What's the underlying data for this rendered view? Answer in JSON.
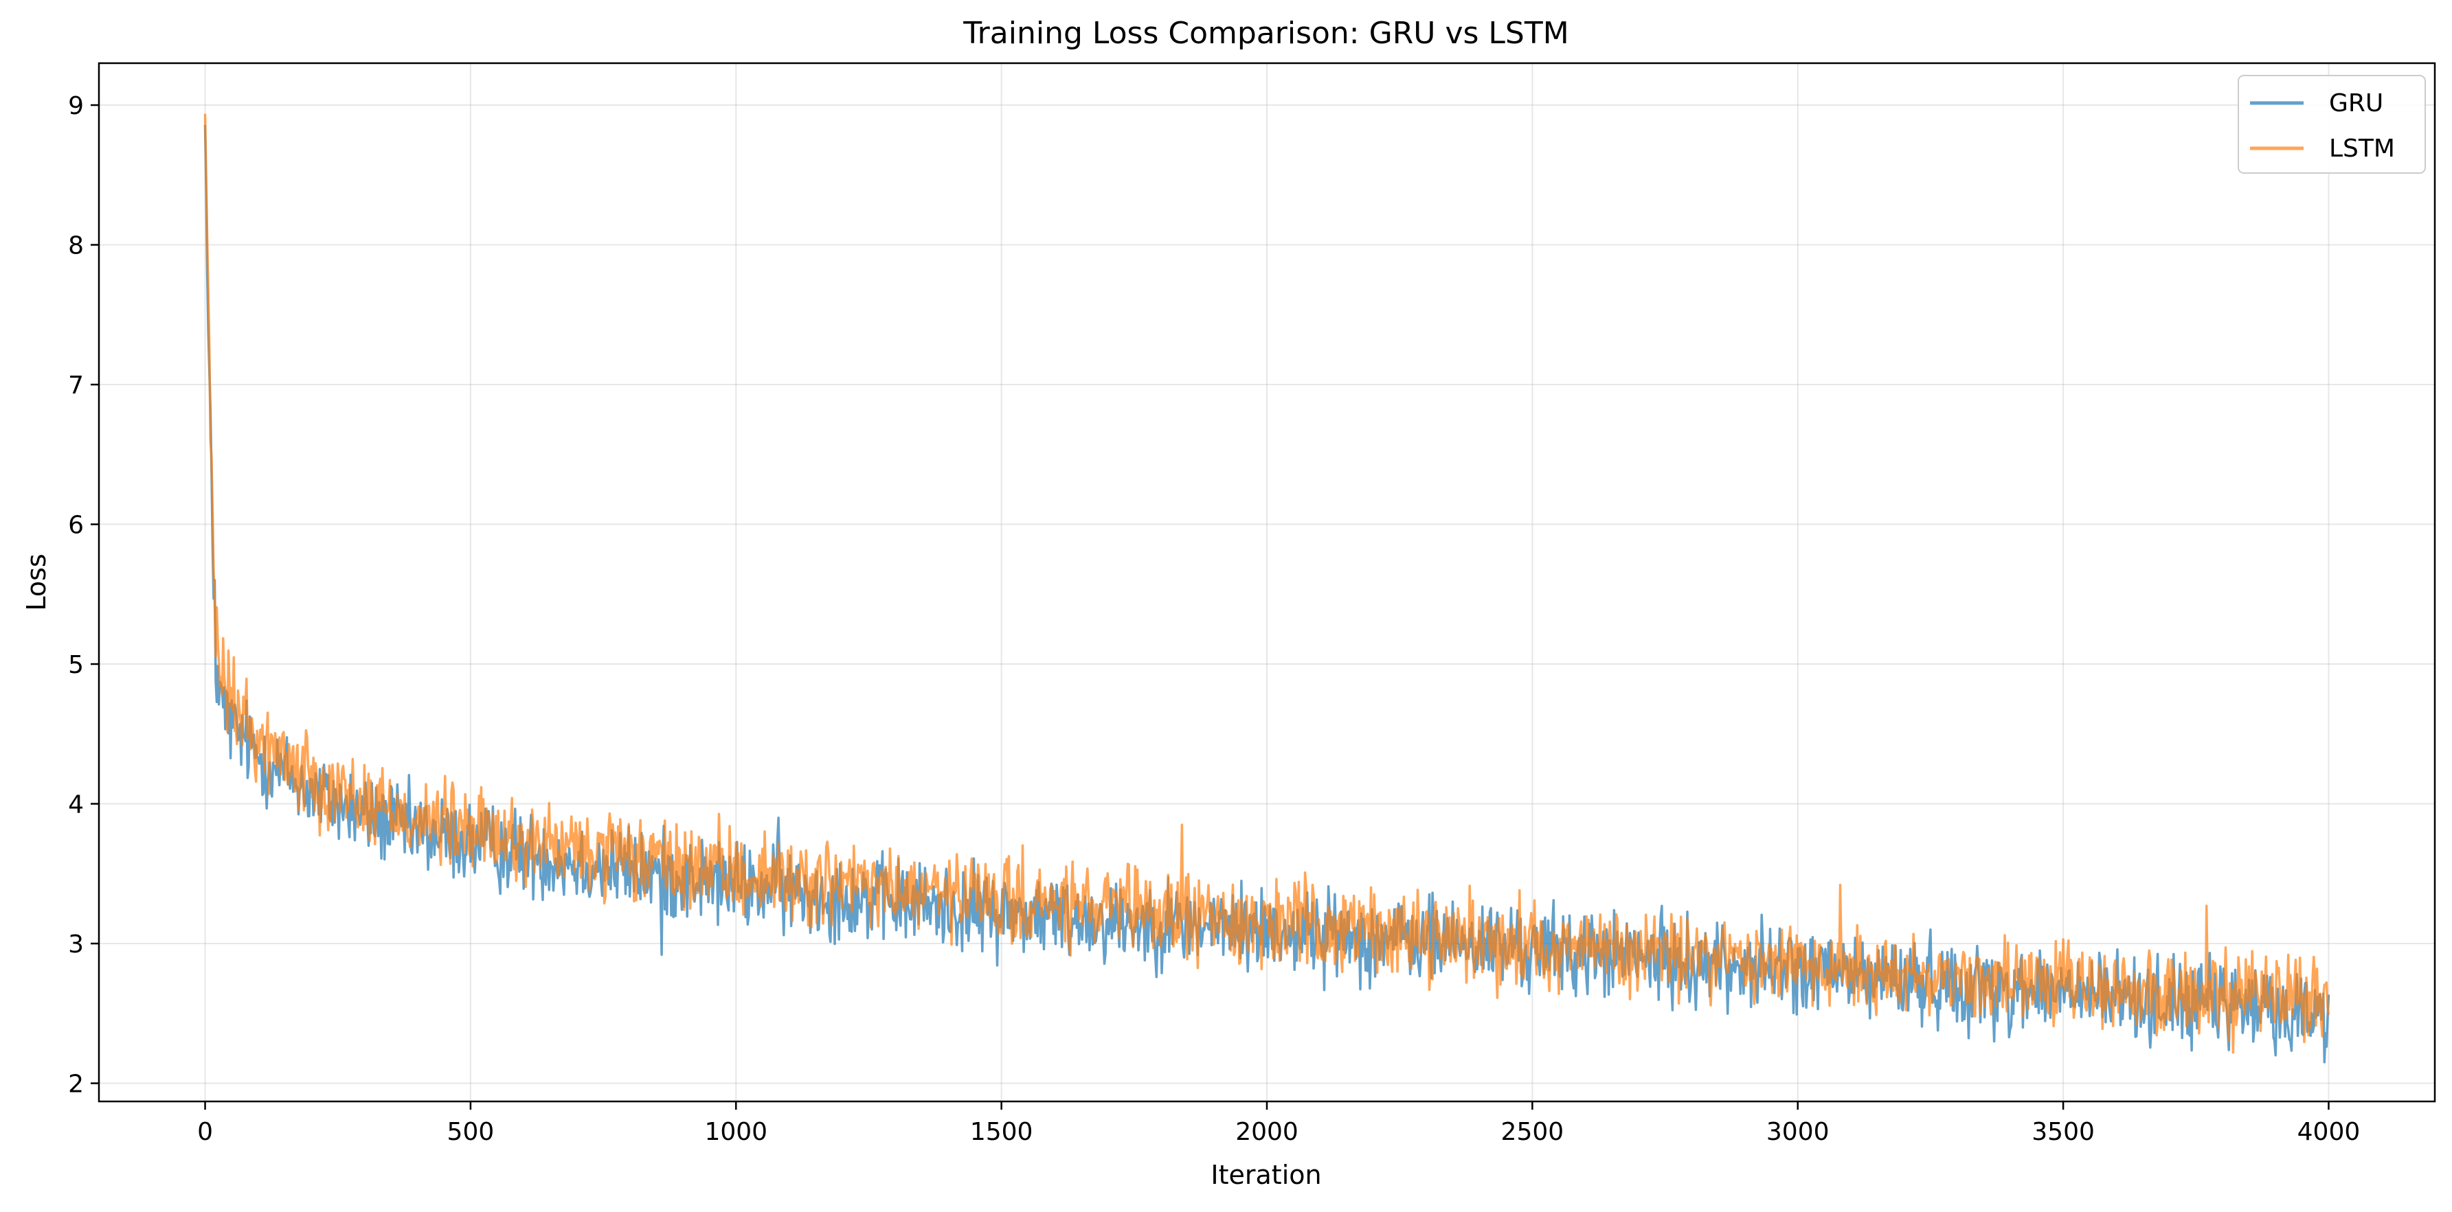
{
  "chart_data": {
    "type": "line",
    "title": "Training Loss Comparison: GRU vs LSTM",
    "xlabel": "Iteration",
    "ylabel": "Loss",
    "xlim": [
      -200,
      4200
    ],
    "ylim": [
      1.87,
      9.3
    ],
    "xticks": [
      0,
      500,
      1000,
      1500,
      2000,
      2500,
      3000,
      3500,
      4000
    ],
    "yticks": [
      2,
      3,
      4,
      5,
      6,
      7,
      8,
      9
    ],
    "grid": true,
    "legend_position": "top-right",
    "x_range": [
      0,
      4000
    ],
    "series": [
      {
        "name": "GRU",
        "color": "#1f77b4",
        "opacity": 0.7,
        "noise_amplitude": 0.15,
        "spike_points": [
          [
            18,
            5.6
          ],
          [
            860,
            2.92
          ],
          [
            1080,
            3.9
          ],
          [
            2350,
            3.3
          ],
          [
            3370,
            2.3
          ],
          [
            3900,
            2.2
          ]
        ],
        "trend_points": [
          [
            0,
            8.95
          ],
          [
            5,
            7.5
          ],
          [
            10,
            6.8
          ],
          [
            15,
            5.6
          ],
          [
            20,
            5.0
          ],
          [
            30,
            4.72
          ],
          [
            50,
            4.55
          ],
          [
            100,
            4.35
          ],
          [
            200,
            4.08
          ],
          [
            300,
            3.92
          ],
          [
            400,
            3.8
          ],
          [
            500,
            3.72
          ],
          [
            700,
            3.58
          ],
          [
            1000,
            3.42
          ],
          [
            1300,
            3.3
          ],
          [
            1500,
            3.22
          ],
          [
            2000,
            3.1
          ],
          [
            2500,
            2.96
          ],
          [
            3000,
            2.81
          ],
          [
            3500,
            2.65
          ],
          [
            4000,
            2.5
          ]
        ]
      },
      {
        "name": "LSTM",
        "color": "#ff7f0e",
        "opacity": 0.7,
        "noise_amplitude": 0.15,
        "spike_points": [
          [
            10,
            6.6
          ],
          [
            25,
            5.2
          ],
          [
            1840,
            3.85
          ],
          [
            3080,
            3.42
          ],
          [
            3770,
            3.27
          ],
          [
            3820,
            2.22
          ]
        ],
        "trend_points": [
          [
            0,
            8.95
          ],
          [
            5,
            7.8
          ],
          [
            10,
            6.9
          ],
          [
            15,
            5.8
          ],
          [
            20,
            5.2
          ],
          [
            30,
            4.92
          ],
          [
            50,
            4.72
          ],
          [
            100,
            4.45
          ],
          [
            200,
            4.2
          ],
          [
            300,
            4.02
          ],
          [
            400,
            3.9
          ],
          [
            500,
            3.8
          ],
          [
            700,
            3.66
          ],
          [
            1000,
            3.5
          ],
          [
            1300,
            3.38
          ],
          [
            1500,
            3.3
          ],
          [
            2000,
            3.15
          ],
          [
            2500,
            3.0
          ],
          [
            3000,
            2.85
          ],
          [
            3500,
            2.7
          ],
          [
            4000,
            2.58
          ]
        ]
      }
    ]
  }
}
